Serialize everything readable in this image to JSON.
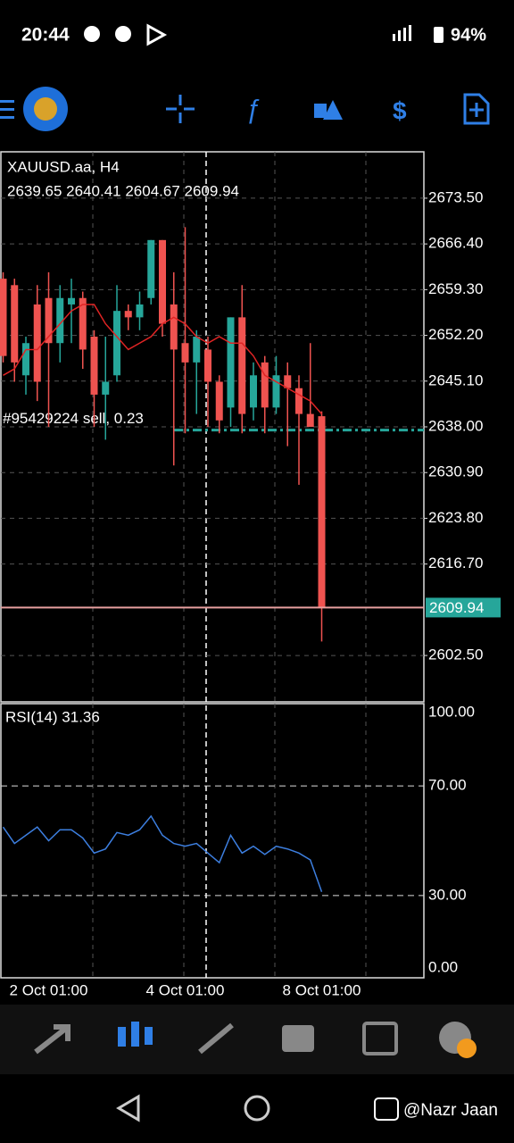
{
  "status_bar": {
    "time": "20:44",
    "battery": "94%"
  },
  "chart_data": {
    "type": "candlestick",
    "title": "XAUUSD.aa, H4",
    "ohlc_text": "2639.65 2640.41 2604.67 2609.94",
    "categories": [
      null,
      null,
      null,
      null,
      "2 Oct 01:00",
      null,
      null,
      null,
      null,
      null,
      null,
      null,
      null,
      null,
      null,
      null,
      "4 Oct 01:00",
      null,
      null,
      null,
      null,
      null,
      null,
      null,
      null,
      null,
      null,
      null,
      "8 Oct 01:00"
    ],
    "open": [
      2661,
      2660,
      2646,
      2657,
      2658,
      2651,
      2657,
      2658,
      2652,
      2643,
      2646,
      2656,
      2655,
      2658,
      2667,
      2657,
      2651,
      2648,
      2650,
      2645,
      2641,
      2655,
      2641,
      2648,
      2641,
      2646,
      2644,
      2640,
      2639.65
    ],
    "high": [
      2662,
      2661,
      2652,
      2660,
      2662,
      2660,
      2661,
      2659,
      2653,
      2652,
      2660,
      2657,
      2659,
      2667,
      2667,
      2662,
      2669,
      2653,
      2652,
      2646,
      2655,
      2660,
      2648,
      2649,
      2649,
      2648,
      2646,
      2651,
      2640.41
    ],
    "low": [
      2648,
      2645,
      2643,
      2642,
      2638,
      2648,
      2651,
      2647,
      2638,
      2636,
      2645,
      2653,
      2653,
      2657,
      2652,
      2632,
      2637,
      2640,
      2638,
      2637,
      2638,
      2637,
      2639,
      2637,
      2640,
      2635,
      2629,
      2638,
      2604.67
    ],
    "close": [
      2649,
      2648,
      2651,
      2645,
      2651,
      2658,
      2658,
      2650,
      2643,
      2645,
      2656,
      2655,
      2657,
      2667,
      2654,
      2650,
      2648,
      2652,
      2645,
      2639,
      2655,
      2640,
      2646,
      2641,
      2646,
      2644,
      2640,
      2638,
      2609.94
    ],
    "up_color": "#26a69a",
    "down_color": "#ef5350",
    "ylim": [
      2595.3,
      2680.7
    ],
    "yticks": [
      {
        "value": 2673.5,
        "label": "2673.50"
      },
      {
        "value": 2666.4,
        "label": "2666.40"
      },
      {
        "value": 2659.3,
        "label": "2659.30"
      },
      {
        "value": 2652.2,
        "label": "2652.20"
      },
      {
        "value": 2645.1,
        "label": "2645.10"
      },
      {
        "value": 2638,
        "label": "2638.00"
      },
      {
        "value": 2630.9,
        "label": "2630.90"
      },
      {
        "value": 2623.8,
        "label": "2623.80"
      },
      {
        "value": 2616.7,
        "label": "2616.70"
      },
      {
        "value": 2602.5,
        "label": "2602.50"
      }
    ],
    "grid": true,
    "ma": {
      "color": "#e02424",
      "values": [
        2646,
        2647,
        2650,
        2650,
        2652,
        2654,
        2656,
        2657,
        2657,
        2654,
        2652,
        2650,
        2651,
        2652,
        2654,
        2655,
        2654,
        2652,
        2651,
        2652,
        2651,
        2651,
        2649,
        2646,
        2645,
        2644,
        2643,
        2642,
        2640
      ]
    },
    "order_line": {
      "label": "#95429224 sell, 0.23",
      "value": 2637.5,
      "color": "#26a69a"
    },
    "last_price": {
      "value": 2609.94,
      "color": "#26a69a"
    },
    "indicator": {
      "title": "RSI(14) 31.36",
      "color": "#3d7fe0",
      "ylim": [
        0,
        100
      ],
      "yticks": [
        {
          "value": 100,
          "label": "100.00"
        },
        {
          "value": 70,
          "label": "70.00"
        },
        {
          "value": 30,
          "label": "30.00"
        },
        {
          "value": 0,
          "label": "0.00"
        }
      ],
      "values": [
        55,
        49,
        52,
        55,
        50,
        54,
        54,
        51,
        45.5,
        47,
        53,
        52,
        54,
        59,
        52,
        49,
        48,
        49,
        45.5,
        42,
        52,
        45.5,
        48,
        45,
        48,
        47,
        45.5,
        43,
        31.36
      ]
    }
  },
  "watermark": "@Nazr Jaan"
}
